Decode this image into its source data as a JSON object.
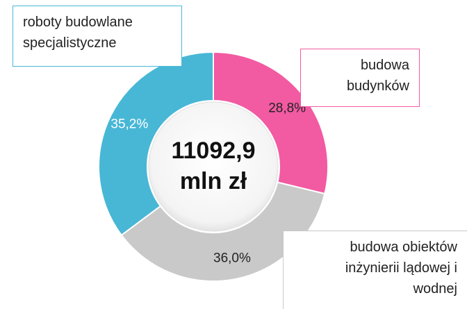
{
  "chart_data": {
    "type": "donut",
    "categories": [
      "budowa budynków",
      "budowa obiektów inżynierii lądowej i wodnej",
      "roboty budowlane specjalistyczne"
    ],
    "values": [
      28.8,
      36.0,
      35.2
    ],
    "value_labels": [
      "28,8%",
      "36,0%",
      "35,2%"
    ],
    "colors": [
      "#f25aa2",
      "#c9c9c9",
      "#48b7d6"
    ],
    "center_label": [
      "11092,9",
      "mln zł"
    ]
  }
}
